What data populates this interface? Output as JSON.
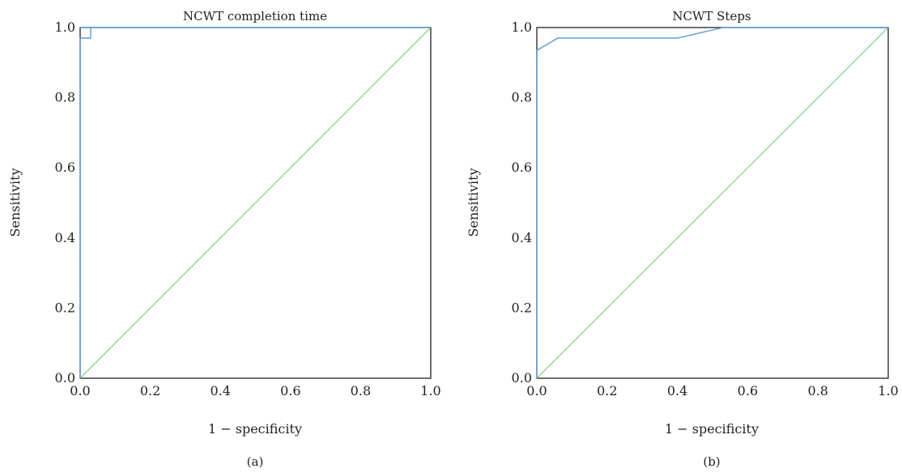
{
  "chart_data": [
    {
      "type": "line",
      "panel_label": "(a)",
      "title": "NCWT completion time",
      "xlabel": "1 − specificity",
      "ylabel": "Sensitivity",
      "xlim": [
        0,
        1
      ],
      "ylim": [
        0,
        1
      ],
      "xticks": [
        "0.0",
        "0.2",
        "0.4",
        "0.6",
        "0.8",
        "1.0"
      ],
      "yticks": [
        "0.0",
        "0.2",
        "0.4",
        "0.6",
        "0.8",
        "1.0"
      ],
      "grid": false,
      "series": [
        {
          "color": "#5b9bd5",
          "x": [
            0,
            0,
            0.03,
            0.03,
            0,
            0,
            1
          ],
          "y": [
            0,
            0.97,
            0.97,
            1.0,
            1.0,
            1.0,
            1.0
          ]
        },
        {
          "color": "#66cc66",
          "x": [
            0,
            1
          ],
          "y": [
            0,
            1
          ]
        }
      ]
    },
    {
      "type": "line",
      "panel_label": "(b)",
      "title": "NCWT Steps",
      "xlabel": "1 − specificity",
      "ylabel": "Sensitivity",
      "xlim": [
        0,
        1
      ],
      "ylim": [
        0,
        1
      ],
      "xticks": [
        "0.0",
        "0.2",
        "0.4",
        "0.6",
        "0.8",
        "1.0"
      ],
      "yticks": [
        "0.0",
        "0.2",
        "0.4",
        "0.6",
        "0.8",
        "1.0"
      ],
      "grid": false,
      "series": [
        {
          "color": "#5b9bd5",
          "x": [
            0,
            0,
            0.06,
            0.4,
            0.53,
            1.0
          ],
          "y": [
            0,
            0.935,
            0.97,
            0.97,
            1.0,
            1.0
          ]
        },
        {
          "color": "#66cc66",
          "x": [
            0,
            1
          ],
          "y": [
            0,
            1
          ]
        }
      ]
    }
  ]
}
